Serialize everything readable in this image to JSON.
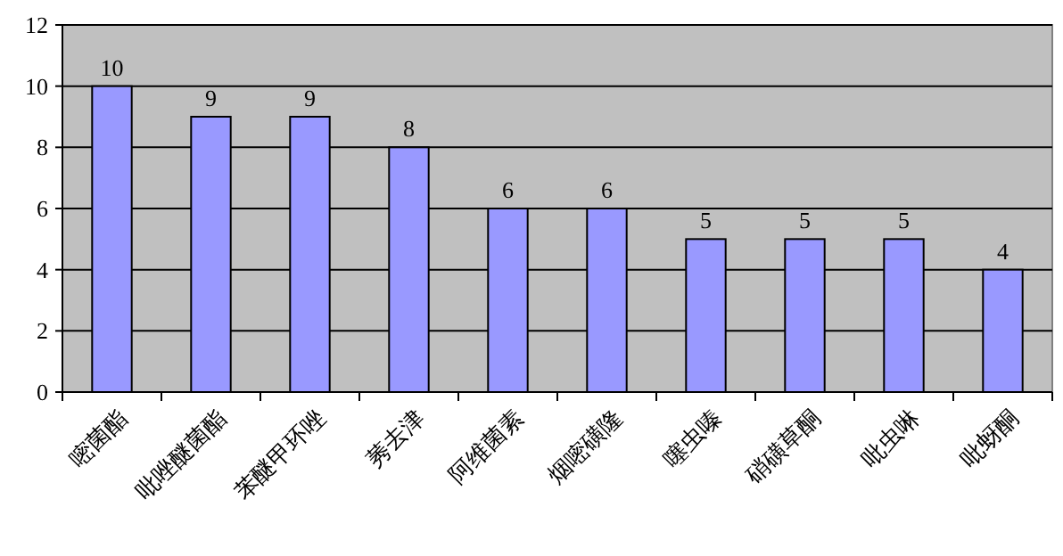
{
  "chart_data": {
    "type": "bar",
    "categories": [
      "嘧菌酯",
      "吡唑醚菌酯",
      "苯醚甲环唑",
      "莠去津",
      "阿维菌素",
      "烟嘧磺隆",
      "噻虫嗪",
      "硝磺草酮",
      "吡虫啉",
      "吡蚜酮"
    ],
    "values": [
      10,
      9,
      9,
      8,
      6,
      6,
      5,
      5,
      5,
      4
    ],
    "color": "#9999ff",
    "ylim": [
      0,
      12
    ],
    "yticks": [
      0,
      2,
      4,
      6,
      8,
      10,
      12
    ],
    "grid": "y",
    "data_labels": true
  }
}
